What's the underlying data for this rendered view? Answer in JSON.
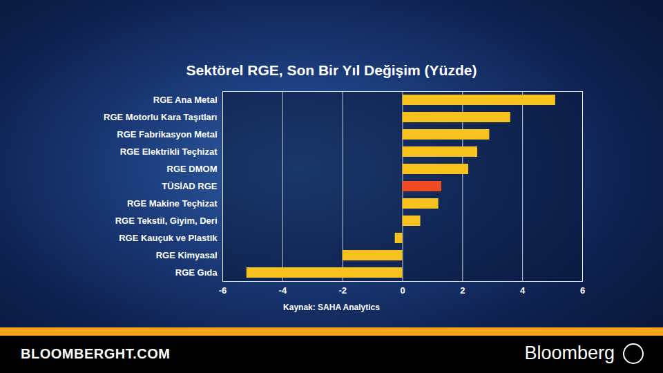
{
  "chart_data": {
    "type": "bar",
    "orientation": "horizontal",
    "title": "Sektörel RGE, Son Bir Yıl Değişim (Yüzde)",
    "source": "Kaynak: SAHA Analytics",
    "categories": [
      "RGE Ana Metal",
      "RGE Motorlu Kara Taşıtları",
      "RGE Fabrikasyon Metal",
      "RGE Elektrikli Teçhizat",
      "RGE DMOM",
      "TÜSİAD RGE",
      "RGE Makine Teçhizat",
      "RGE Tekstil, Giyim, Deri",
      "RGE Kauçuk ve Plastik",
      "RGE Kimyasal",
      "RGE Gıda"
    ],
    "values": [
      5.1,
      3.6,
      2.9,
      2.5,
      2.2,
      1.3,
      1.2,
      0.6,
      -0.25,
      -2.0,
      -5.2
    ],
    "colors": [
      "#f7c21e",
      "#f7c21e",
      "#f7c21e",
      "#f7c21e",
      "#f7c21e",
      "#ee4b23",
      "#f7c21e",
      "#f7c21e",
      "#f7c21e",
      "#f7c21e",
      "#f7c21e"
    ],
    "xlim": [
      -6,
      6
    ],
    "xticks": [
      -6,
      -4,
      -2,
      0,
      2,
      4,
      6
    ],
    "grid": true
  },
  "footer": {
    "site": "BLOOMBERGHT.COM",
    "brand": "Bloomberg"
  }
}
